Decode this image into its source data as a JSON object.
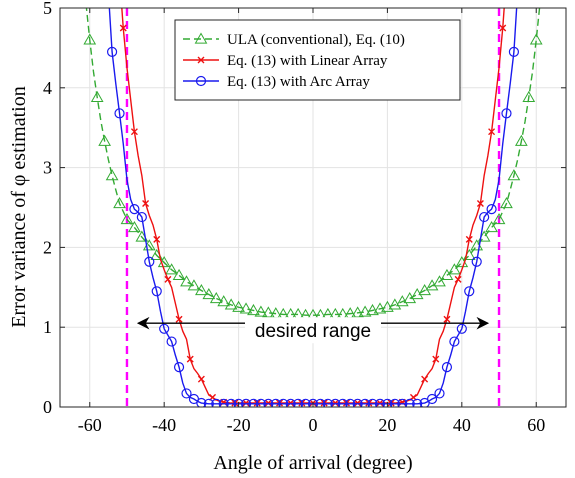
{
  "chart_data": {
    "type": "line",
    "xlabel": "Angle of arrival (degree)",
    "ylabel": "Error variance of φ estimation",
    "xlim": [
      -68,
      68
    ],
    "ylim": [
      0,
      5
    ],
    "xticks": [
      -60,
      -40,
      -20,
      0,
      20,
      40,
      60
    ],
    "yticks": [
      0,
      1,
      2,
      3,
      4,
      5
    ],
    "grid": true,
    "legend_position": "top-right",
    "annotation": {
      "text": "desired range",
      "arrow_from": -47,
      "arrow_to": 47,
      "arrow_y": 1.05,
      "text_x": 0,
      "text_y": 0.95
    },
    "vertical_lines": [
      {
        "x": -50,
        "color": "#ff00ff"
      },
      {
        "x": 50,
        "color": "#ff00ff"
      }
    ],
    "series": [
      {
        "name": "ULA (conventional), Eq. (10)",
        "color": "#33aa33",
        "dash": true,
        "marker": "triangle",
        "marker_x": [
          -60,
          -58,
          -56,
          -54,
          -52,
          -50,
          -48,
          -46,
          -44,
          -42,
          -40,
          -38,
          -36,
          -34,
          -32,
          -30,
          -28,
          -26,
          -24,
          -22,
          -20,
          -18,
          -16,
          -14,
          -12,
          -10,
          -8,
          -6,
          -4,
          -2,
          0,
          2,
          4,
          6,
          8,
          10,
          12,
          14,
          16,
          18,
          20,
          22,
          24,
          26,
          28,
          30,
          32,
          34,
          36,
          38,
          40,
          42,
          44,
          46,
          48,
          50,
          52,
          54,
          56,
          58,
          60
        ],
        "marker_y": [
          4.6,
          3.88,
          3.33,
          2.9,
          2.55,
          2.35,
          2.25,
          2.13,
          2.02,
          1.9,
          1.81,
          1.72,
          1.65,
          1.57,
          1.52,
          1.46,
          1.41,
          1.36,
          1.32,
          1.28,
          1.25,
          1.23,
          1.21,
          1.19,
          1.18,
          1.17,
          1.16,
          1.16,
          1.16,
          1.15,
          1.15,
          1.15,
          1.16,
          1.16,
          1.16,
          1.17,
          1.18,
          1.19,
          1.21,
          1.23,
          1.25,
          1.28,
          1.32,
          1.36,
          1.41,
          1.46,
          1.52,
          1.57,
          1.65,
          1.72,
          1.81,
          1.9,
          2.02,
          2.13,
          2.25,
          2.35,
          2.55,
          2.9,
          3.33,
          3.88,
          4.6
        ],
        "x": [
          -62,
          -61,
          -60,
          -59,
          -58,
          -57,
          -56,
          -55,
          -54,
          -53,
          -52,
          -51,
          -50,
          -48,
          -46,
          -44,
          -42,
          -40,
          -38,
          -36,
          -34,
          -32,
          -30,
          -28,
          -26,
          -24,
          -22,
          -20,
          -18,
          -16,
          -14,
          -12,
          -10,
          -8,
          -6,
          -4,
          -2,
          0,
          2,
          4,
          6,
          8,
          10,
          12,
          14,
          16,
          18,
          20,
          22,
          24,
          26,
          28,
          30,
          32,
          34,
          36,
          38,
          40,
          42,
          44,
          46,
          48,
          50,
          51,
          52,
          53,
          54,
          55,
          56,
          57,
          58,
          59,
          60,
          61,
          62
        ],
        "y": [
          5.6,
          5.05,
          4.6,
          4.2,
          3.88,
          3.58,
          3.33,
          3.1,
          2.9,
          2.72,
          2.55,
          2.45,
          2.35,
          2.25,
          2.13,
          2.02,
          1.9,
          1.81,
          1.72,
          1.65,
          1.57,
          1.52,
          1.46,
          1.41,
          1.36,
          1.32,
          1.28,
          1.25,
          1.23,
          1.21,
          1.19,
          1.18,
          1.17,
          1.16,
          1.16,
          1.16,
          1.15,
          1.15,
          1.15,
          1.16,
          1.16,
          1.16,
          1.17,
          1.18,
          1.19,
          1.21,
          1.23,
          1.25,
          1.28,
          1.32,
          1.36,
          1.41,
          1.46,
          1.52,
          1.57,
          1.65,
          1.72,
          1.81,
          1.9,
          2.02,
          2.13,
          2.25,
          2.35,
          2.45,
          2.55,
          2.72,
          2.9,
          3.1,
          3.33,
          3.58,
          3.88,
          4.2,
          4.6,
          5.05,
          5.6
        ]
      },
      {
        "name": "Eq. (13) with Linear Array",
        "color": "#ee1111",
        "dash": false,
        "marker": "x",
        "marker_x": [
          -51,
          -48,
          -45,
          -42,
          -39,
          -36,
          -33,
          -30,
          -27,
          -24,
          -21,
          -18,
          -15,
          -12,
          -9,
          -6,
          -3,
          0,
          3,
          6,
          9,
          12,
          15,
          18,
          21,
          24,
          27,
          30,
          33,
          36,
          39,
          42,
          45,
          48,
          51
        ],
        "marker_y": [
          4.75,
          3.45,
          2.55,
          2.1,
          1.6,
          1.1,
          0.6,
          0.35,
          0.12,
          0.06,
          0.05,
          0.05,
          0.05,
          0.05,
          0.05,
          0.05,
          0.05,
          0.05,
          0.05,
          0.05,
          0.05,
          0.05,
          0.05,
          0.05,
          0.05,
          0.06,
          0.12,
          0.35,
          0.6,
          1.1,
          1.6,
          2.1,
          2.55,
          3.45,
          4.75
        ],
        "x": [
          -53,
          -52,
          -51,
          -50,
          -49,
          -48,
          -47,
          -46,
          -45,
          -44,
          -43,
          -42,
          -41,
          -40,
          -39,
          -38,
          -37,
          -36,
          -35,
          -34,
          -33,
          -32,
          -31,
          -30,
          -29,
          -28,
          -27,
          -26,
          -25,
          -24,
          -22,
          -20,
          -15,
          -10,
          -5,
          0,
          5,
          10,
          15,
          20,
          22,
          24,
          25,
          26,
          27,
          28,
          29,
          30,
          31,
          32,
          33,
          34,
          35,
          36,
          37,
          38,
          39,
          40,
          41,
          42,
          43,
          44,
          45,
          46,
          47,
          48,
          49,
          50,
          51,
          52,
          53
        ],
        "y": [
          6.0,
          5.4,
          4.75,
          4.25,
          3.85,
          3.45,
          3.15,
          2.9,
          2.55,
          2.4,
          2.28,
          2.1,
          1.85,
          1.72,
          1.6,
          1.5,
          1.3,
          1.1,
          0.95,
          0.85,
          0.6,
          0.48,
          0.42,
          0.35,
          0.25,
          0.15,
          0.12,
          0.09,
          0.07,
          0.06,
          0.05,
          0.05,
          0.05,
          0.05,
          0.05,
          0.05,
          0.05,
          0.05,
          0.05,
          0.05,
          0.05,
          0.06,
          0.07,
          0.09,
          0.12,
          0.15,
          0.25,
          0.35,
          0.42,
          0.48,
          0.6,
          0.85,
          0.95,
          1.1,
          1.3,
          1.5,
          1.6,
          1.72,
          1.85,
          2.1,
          2.28,
          2.4,
          2.55,
          2.9,
          3.15,
          3.45,
          3.85,
          4.25,
          4.75,
          5.4,
          6.0
        ]
      },
      {
        "name": "Eq. (13) with Arc Array",
        "color": "#1a1aee",
        "dash": false,
        "marker": "circle",
        "marker_x": [
          -54,
          -52,
          -48,
          -46,
          -44,
          -42,
          -40,
          -38,
          -36,
          -34,
          -32,
          -30,
          -28,
          -26,
          -24,
          -22,
          -20,
          -18,
          -16,
          -14,
          -12,
          -10,
          -8,
          -6,
          -4,
          -2,
          0,
          2,
          4,
          6,
          8,
          10,
          12,
          14,
          16,
          18,
          20,
          22,
          24,
          26,
          28,
          30,
          32,
          34,
          36,
          38,
          40,
          42,
          44,
          46,
          48,
          52,
          54
        ],
        "marker_y": [
          4.45,
          3.68,
          2.48,
          2.38,
          1.82,
          1.45,
          0.98,
          0.82,
          0.5,
          0.17,
          0.1,
          0.05,
          0.04,
          0.04,
          0.04,
          0.04,
          0.04,
          0.04,
          0.04,
          0.04,
          0.04,
          0.04,
          0.04,
          0.04,
          0.04,
          0.04,
          0.04,
          0.04,
          0.04,
          0.04,
          0.04,
          0.04,
          0.04,
          0.04,
          0.04,
          0.04,
          0.04,
          0.04,
          0.04,
          0.04,
          0.04,
          0.05,
          0.1,
          0.17,
          0.5,
          0.82,
          0.98,
          1.45,
          1.82,
          2.38,
          2.48,
          3.68,
          4.45
        ],
        "x": [
          -56,
          -55,
          -54,
          -53,
          -52,
          -51,
          -50,
          -49,
          -48,
          -47,
          -46,
          -45,
          -44,
          -43,
          -42,
          -41,
          -40,
          -39,
          -38,
          -37,
          -36,
          -35,
          -34,
          -33,
          -32,
          -31,
          -30,
          -29,
          -28,
          -26,
          -20,
          -10,
          0,
          10,
          20,
          26,
          28,
          29,
          30,
          31,
          32,
          33,
          34,
          35,
          36,
          37,
          38,
          39,
          40,
          41,
          42,
          43,
          44,
          45,
          46,
          47,
          48,
          49,
          50,
          51,
          52,
          53,
          54,
          55,
          56
        ],
        "y": [
          6.0,
          5.2,
          4.45,
          4.05,
          3.68,
          3.3,
          2.85,
          2.6,
          2.48,
          2.44,
          2.38,
          2.1,
          1.82,
          1.62,
          1.45,
          1.2,
          0.98,
          0.9,
          0.82,
          0.65,
          0.5,
          0.3,
          0.17,
          0.12,
          0.1,
          0.07,
          0.05,
          0.045,
          0.04,
          0.04,
          0.04,
          0.04,
          0.04,
          0.04,
          0.04,
          0.04,
          0.04,
          0.045,
          0.05,
          0.07,
          0.1,
          0.12,
          0.17,
          0.3,
          0.5,
          0.65,
          0.82,
          0.9,
          0.98,
          1.2,
          1.45,
          1.62,
          1.82,
          2.1,
          2.38,
          2.44,
          2.48,
          2.6,
          2.85,
          3.3,
          3.68,
          4.05,
          4.45,
          5.2,
          6.0
        ]
      }
    ]
  }
}
